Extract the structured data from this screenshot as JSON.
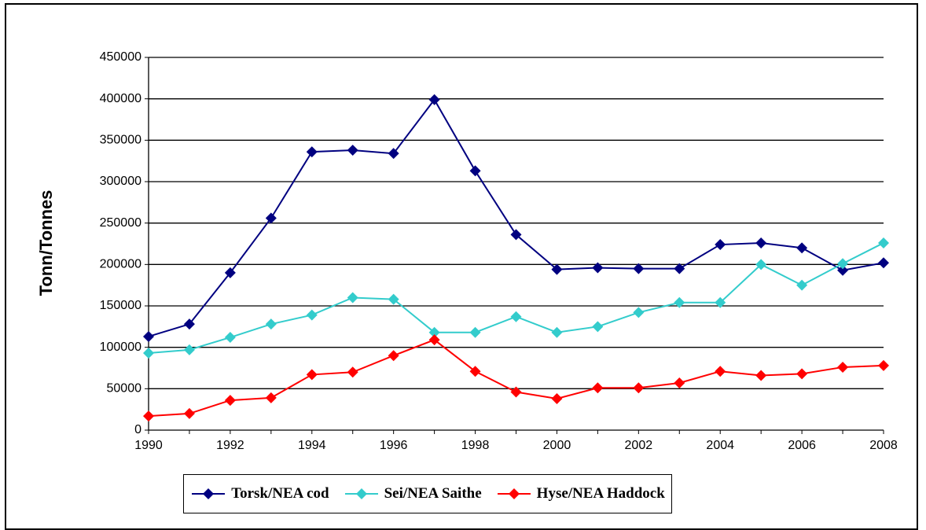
{
  "chart_data": {
    "type": "line",
    "ylabel": "Tonn/Tonnes",
    "xlabel": "",
    "x": [
      1990,
      1991,
      1992,
      1993,
      1994,
      1995,
      1996,
      1997,
      1998,
      1999,
      2000,
      2001,
      2002,
      2003,
      2004,
      2005,
      2006,
      2007,
      2008
    ],
    "x_tick_labels": [
      "1990",
      "1992",
      "1994",
      "1996",
      "1998",
      "2000",
      "2002",
      "2004",
      "2006",
      "2008"
    ],
    "y_tick_labels": [
      "0",
      "50000",
      "100000",
      "150000",
      "200000",
      "250000",
      "300000",
      "350000",
      "400000",
      "450000"
    ],
    "ylim": [
      0,
      450000
    ],
    "grid": "horizontal",
    "legend_position": "bottom",
    "series": [
      {
        "name": "Torsk/NEA cod",
        "color": "#000080",
        "marker": "diamond",
        "values": [
          113000,
          128000,
          190000,
          256000,
          336000,
          338000,
          334000,
          399000,
          313000,
          236000,
          194000,
          196000,
          195000,
          195000,
          224000,
          226000,
          220000,
          193000,
          202000
        ]
      },
      {
        "name": "Sei/NEA Saithe",
        "color": "#33CCCC",
        "marker": "diamond",
        "values": [
          93000,
          97000,
          112000,
          128000,
          139000,
          160000,
          158000,
          118000,
          118000,
          137000,
          118000,
          125000,
          142000,
          154000,
          154000,
          200000,
          175000,
          201000,
          226000
        ]
      },
      {
        "name": "Hyse/NEA Haddock",
        "color": "#FF0000",
        "marker": "diamond",
        "values": [
          17000,
          20000,
          36000,
          39000,
          67000,
          70000,
          90000,
          109000,
          71000,
          46000,
          38000,
          51000,
          51000,
          57000,
          71000,
          66000,
          68000,
          76000,
          78000
        ]
      }
    ]
  }
}
